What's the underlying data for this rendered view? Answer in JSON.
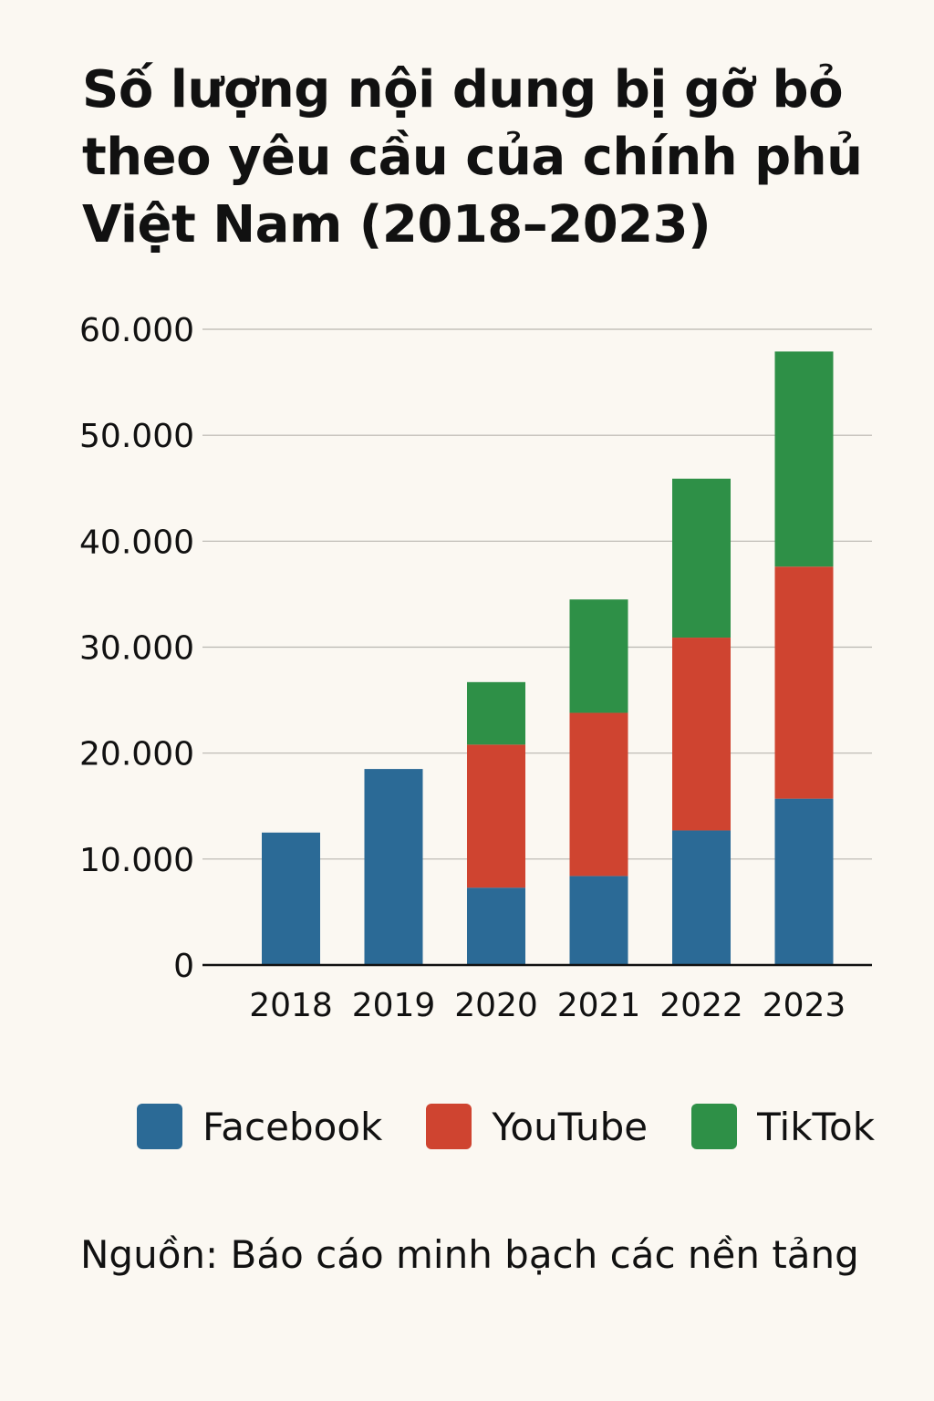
{
  "chart_data": {
    "type": "bar",
    "stacked": true,
    "title": "Số lượng nội dung bị gỡ bỏ theo yêu cầu của chính phủ Việt Nam (2018–2023)",
    "xlabel": "",
    "ylabel": "",
    "categories": [
      "2018",
      "2019",
      "2020",
      "2021",
      "2022",
      "2023"
    ],
    "series": [
      {
        "name": "Facebook",
        "color": "#2b6a96",
        "values": [
          12500,
          18500,
          7300,
          8400,
          12700,
          15700
        ]
      },
      {
        "name": "YouTube",
        "color": "#cf4430",
        "values": [
          0,
          0,
          13500,
          15400,
          18200,
          21900
        ]
      },
      {
        "name": "TikTok",
        "color": "#2e9047",
        "values": [
          0,
          0,
          5900,
          10700,
          15000,
          20300
        ]
      }
    ],
    "ylim": [
      0,
      60000
    ],
    "yticks": [
      0,
      10000,
      20000,
      30000,
      40000,
      50000,
      60000
    ],
    "ytick_labels": [
      "0",
      "10.000",
      "20.000",
      "30.000",
      "40.000",
      "50.000",
      "60.000"
    ],
    "grid": true,
    "legend_position": "bottom",
    "source": "Nguồn: Báo cáo minh bạch các nền tảng"
  }
}
